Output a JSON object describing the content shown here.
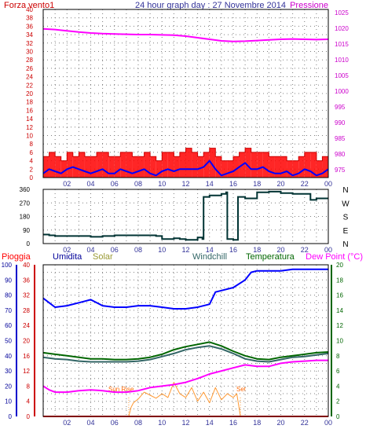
{
  "title": "24 hour graph day : 27 Novembre 2014",
  "x_ticks": [
    "02",
    "04",
    "06",
    "08",
    "10",
    "12",
    "14",
    "16",
    "18",
    "20",
    "22",
    "00"
  ],
  "colors": {
    "frame": "#000000",
    "grid": "#7f7f7f",
    "wind": "#ff0000",
    "wind_avg": "#0000ff",
    "pressure": "#ff00ff",
    "direction": "#003333",
    "humidity": "#0000ff",
    "temperature": "#006600",
    "windchill": "#336666",
    "dew_point": "#ff00ff",
    "solar": "#ff9933",
    "rain": "#ff0000"
  },
  "chart_data": [
    {
      "type": "line",
      "panel": "wind-pressure",
      "title": "24 hour graph day : 27 Novembre 2014",
      "y_left_label": "Forza vento1",
      "y_right_label": "Pressione",
      "y_left_ticks": [
        "0",
        "2",
        "4",
        "6",
        "8",
        "10",
        "12",
        "14",
        "16",
        "18",
        "20",
        "22",
        "24",
        "26",
        "28",
        "30",
        "32",
        "34",
        "36",
        "38",
        "40"
      ],
      "y_right_ticks": [
        "975",
        "980",
        "985",
        "990",
        "995",
        "1000",
        "1005",
        "1010",
        "1015",
        "1020",
        "1025"
      ],
      "ylim_left": [
        0,
        40
      ],
      "ylim_right": [
        972.5,
        1026
      ],
      "xlim": [
        0,
        24
      ],
      "grid": true,
      "series": [
        {
          "key": "wind_gust",
          "kind": "band",
          "x": [
            0,
            0.5,
            1,
            1.5,
            2,
            2.5,
            3,
            3.5,
            4,
            4.5,
            5,
            5.5,
            6,
            6.5,
            7,
            7.5,
            8,
            8.5,
            9,
            9.5,
            10,
            10.5,
            11,
            11.5,
            12,
            12.5,
            13,
            13.5,
            14,
            14.5,
            15,
            15.5,
            16,
            16.5,
            17,
            17.5,
            18,
            18.5,
            19,
            19.5,
            20,
            20.5,
            21,
            21.5,
            22,
            22.5,
            23,
            23.5,
            24
          ],
          "values": [
            5,
            6,
            5,
            4,
            6,
            5,
            6,
            5,
            5,
            6,
            6,
            5,
            5,
            6,
            6,
            5,
            5,
            6,
            5,
            4,
            6,
            6,
            5,
            6,
            7,
            6,
            5,
            6,
            7,
            5,
            4,
            4,
            5,
            6,
            7,
            6,
            6,
            6,
            5,
            5,
            5,
            4,
            4,
            5,
            6,
            6,
            4,
            5,
            5
          ]
        },
        {
          "key": "wind_avg",
          "kind": "line",
          "x": [
            0,
            0.5,
            1,
            1.5,
            2,
            2.5,
            3,
            3.5,
            4,
            4.5,
            5,
            5.5,
            6,
            6.5,
            7,
            7.5,
            8,
            8.5,
            9,
            9.5,
            10,
            10.5,
            11,
            11.5,
            12,
            12.5,
            13,
            13.5,
            14,
            14.5,
            15,
            15.5,
            16,
            16.5,
            17,
            17.5,
            18,
            18.5,
            19,
            19.5,
            20,
            20.5,
            21,
            21.5,
            22,
            22.5,
            23,
            23.5,
            24
          ],
          "values": [
            1,
            2,
            1.5,
            1,
            2,
            2.5,
            2,
            1.5,
            1,
            1.5,
            2,
            1,
            1,
            2,
            1.5,
            1,
            1.5,
            2,
            1,
            0.5,
            1.5,
            2,
            1.5,
            2,
            2,
            2,
            2,
            2.5,
            4,
            2,
            0.5,
            1,
            1.5,
            2.5,
            3.5,
            2,
            2,
            2.5,
            1.5,
            1,
            1,
            1.5,
            0.5,
            1,
            2,
            1.5,
            0.5,
            1,
            2
          ]
        },
        {
          "key": "pressure",
          "kind": "line",
          "axis": "right",
          "x": [
            0,
            1,
            2,
            3,
            4,
            5,
            6,
            7,
            8,
            9,
            10,
            11,
            12,
            13,
            14,
            15,
            16,
            17,
            18,
            19,
            20,
            21,
            22,
            23,
            24
          ],
          "values": [
            1019.8,
            1019.6,
            1019.2,
            1018.8,
            1018.5,
            1018.3,
            1018.2,
            1018.1,
            1018.0,
            1018.0,
            1017.9,
            1017.8,
            1017.5,
            1017.0,
            1016.5,
            1016.0,
            1015.8,
            1015.9,
            1016.1,
            1016.3,
            1016.5,
            1016.6,
            1016.5,
            1016.4,
            1016.5
          ]
        }
      ]
    },
    {
      "type": "line",
      "panel": "wind-direction",
      "y_left_ticks": [
        "0",
        "90",
        "180",
        "270",
        "360"
      ],
      "y_right_labels": [
        "N",
        "W",
        "S",
        "E",
        "N"
      ],
      "ylim": [
        0,
        360
      ],
      "xlim": [
        0,
        24
      ],
      "grid": true,
      "series": [
        {
          "key": "direction",
          "x": [
            0,
            0.5,
            1,
            2,
            3,
            4,
            5,
            6,
            7,
            8,
            9,
            9.5,
            10,
            11,
            11.5,
            12,
            12.5,
            13,
            13.4,
            13.5,
            14,
            15,
            15.4,
            15.5,
            16,
            16.3,
            16.4,
            17,
            18,
            19,
            20,
            21,
            22,
            22.5,
            23,
            24
          ],
          "values": [
            60,
            55,
            50,
            50,
            50,
            45,
            50,
            55,
            55,
            55,
            55,
            50,
            30,
            35,
            30,
            25,
            25,
            40,
            30,
            310,
            320,
            330,
            340,
            30,
            25,
            25,
            310,
            300,
            340,
            345,
            335,
            330,
            330,
            290,
            300,
            300
          ]
        }
      ]
    },
    {
      "type": "line",
      "panel": "weather",
      "legend": [
        "Pioggia",
        "Umidita",
        "Solar",
        "Windchill",
        "Temperatura",
        "Dew Point (°C)"
      ],
      "y_rain_ticks": [
        "0",
        "10",
        "20",
        "30",
        "40",
        "50",
        "60",
        "70",
        "80",
        "90",
        "100"
      ],
      "y_hum_ticks": [
        "0",
        "4",
        "8",
        "12",
        "16",
        "20",
        "24",
        "28",
        "32",
        "36",
        "40"
      ],
      "y_temp_ticks": [
        "0",
        "2",
        "4",
        "6",
        "8",
        "10",
        "12",
        "14",
        "16",
        "18",
        "20"
      ],
      "ylim_temp": [
        0,
        20
      ],
      "ylim_humidity": [
        0,
        100
      ],
      "xlim": [
        0,
        24
      ],
      "grid": true,
      "annotations": [
        "Sun Rise",
        "Set"
      ],
      "series": [
        {
          "key": "humidity",
          "x": [
            0,
            0.5,
            1,
            2,
            3,
            4,
            5,
            6,
            7,
            8,
            9,
            10,
            11,
            12,
            13,
            14,
            14.5,
            15,
            16,
            17,
            17.5,
            18,
            19,
            20,
            21,
            22,
            23,
            24
          ],
          "values": [
            78,
            75,
            72,
            73,
            75,
            77,
            73,
            72,
            72,
            73,
            73,
            72,
            71,
            71,
            72,
            74,
            82,
            83,
            85,
            90,
            95,
            96,
            96,
            96,
            97,
            97,
            97,
            97
          ]
        },
        {
          "key": "temperature",
          "x": [
            0,
            1,
            2,
            3,
            4,
            5,
            6,
            7,
            8,
            9,
            10,
            11,
            12,
            13,
            14,
            15,
            16,
            17,
            18,
            19,
            20,
            21,
            22,
            23,
            24
          ],
          "values": [
            8.4,
            8.2,
            8.0,
            7.8,
            7.6,
            7.6,
            7.5,
            7.5,
            7.6,
            7.8,
            8.2,
            8.8,
            9.2,
            9.5,
            9.8,
            9.3,
            8.6,
            8.0,
            7.6,
            7.5,
            7.8,
            8.0,
            8.2,
            8.4,
            8.5
          ]
        },
        {
          "key": "windchill",
          "x": [
            0,
            1,
            2,
            3,
            4,
            5,
            6,
            7,
            8,
            9,
            10,
            11,
            12,
            13,
            14,
            15,
            16,
            17,
            18,
            19,
            20,
            21,
            22,
            23,
            24
          ],
          "values": [
            7.8,
            7.6,
            7.5,
            7.3,
            7.2,
            7.2,
            7.2,
            7.2,
            7.3,
            7.5,
            7.9,
            8.3,
            8.8,
            9.1,
            9.3,
            8.9,
            8.3,
            7.6,
            7.3,
            7.2,
            7.5,
            7.8,
            7.9,
            8.1,
            8.3
          ]
        },
        {
          "key": "dew_point",
          "x": [
            0,
            0.5,
            1,
            2,
            3,
            4,
            5,
            6,
            7,
            8,
            9,
            10,
            11,
            12,
            13,
            14,
            15,
            16,
            17,
            18,
            19,
            20,
            21,
            22,
            23,
            24
          ],
          "values": [
            4.0,
            3.5,
            3.2,
            3.2,
            3.4,
            3.5,
            3.4,
            3.2,
            3.2,
            3.4,
            3.8,
            4.0,
            4.2,
            4.5,
            5.0,
            5.6,
            6.0,
            6.4,
            6.8,
            6.6,
            6.6,
            7.0,
            7.2,
            7.3,
            7.4,
            7.4
          ]
        },
        {
          "key": "solar",
          "x": [
            7.2,
            7.4,
            7.6,
            8,
            8.5,
            9,
            9.5,
            10,
            10.5,
            11,
            11.5,
            12,
            12.5,
            13,
            13.5,
            14,
            14.5,
            15,
            15.5,
            16,
            16.3,
            16.5,
            16.6
          ],
          "values": [
            0,
            1.2,
            1.8,
            2.3,
            3.2,
            2.8,
            2.4,
            3.0,
            2.5,
            4.5,
            3.0,
            2.5,
            3.8,
            2.0,
            3.2,
            1.8,
            3.8,
            2.2,
            3.0,
            2.5,
            3.0,
            1.0,
            0
          ]
        },
        {
          "key": "rain",
          "x": [
            0,
            24
          ],
          "values": [
            0,
            0
          ]
        }
      ]
    }
  ]
}
